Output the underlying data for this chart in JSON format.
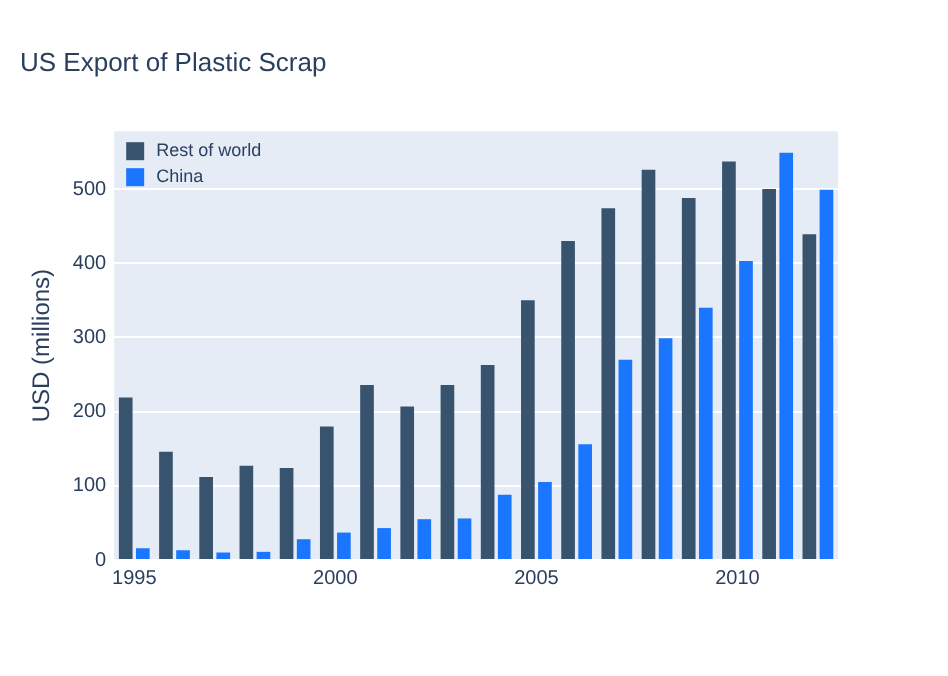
{
  "chart_data": {
    "type": "bar",
    "title": "US Export of Plastic Scrap",
    "ylabel": "USD (millions)",
    "x": [
      1995,
      1996,
      1997,
      1998,
      1999,
      2000,
      2001,
      2002,
      2003,
      2004,
      2005,
      2006,
      2007,
      2008,
      2009,
      2010,
      2011,
      2012
    ],
    "series": [
      {
        "name": "Rest of world",
        "color": "#37536d",
        "values": [
          219,
          146,
          112,
          127,
          124,
          180,
          236,
          207,
          236,
          263,
          350,
          430,
          474,
          526,
          488,
          537,
          500,
          439
        ]
      },
      {
        "name": "China",
        "color": "#1a76ff",
        "values": [
          16,
          13,
          10,
          11,
          28,
          37,
          43,
          55,
          56,
          88,
          105,
          156,
          270,
          299,
          340,
          403,
          549,
          499
        ]
      }
    ],
    "xlim": [
      1994.5,
      2012.5
    ],
    "xticks": [
      1995,
      2000,
      2005,
      2010
    ],
    "ylim": [
      0,
      578
    ],
    "yticks": [
      0,
      100,
      200,
      300,
      400,
      500
    ],
    "grid": "y",
    "legend": "top left"
  }
}
